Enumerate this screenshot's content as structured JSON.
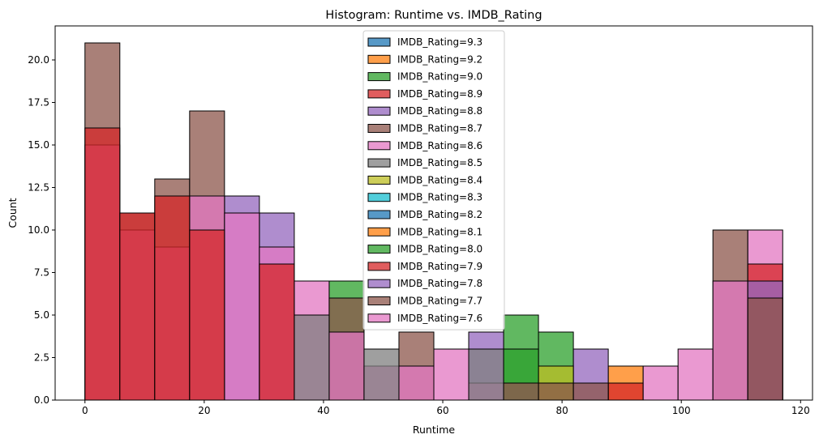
{
  "chart_data": {
    "type": "bar",
    "chart_subtype": "overlaid-histogram",
    "title": "Histogram: Runtime vs. IMDB_Rating",
    "xlabel": "Runtime",
    "ylabel": "Count",
    "xlim": [
      -5,
      122
    ],
    "ylim": [
      0,
      22
    ],
    "xticks": [
      0,
      20,
      40,
      60,
      80,
      100,
      120
    ],
    "yticks": [
      0,
      2.5,
      5,
      7.5,
      10,
      12.5,
      15,
      17.5,
      20
    ],
    "ytick_labels": [
      "0.0",
      "2.5",
      "5.0",
      "7.5",
      "10.0",
      "12.5",
      "15.0",
      "17.5",
      "20.0"
    ],
    "bin_edges": [
      0,
      5.85,
      11.7,
      17.55,
      23.4,
      29.25,
      35.1,
      40.95,
      46.8,
      52.65,
      58.5,
      64.35,
      70.2,
      76.05,
      81.9,
      87.75,
      93.6,
      99.45,
      105.3,
      111.15,
      117
    ],
    "grid": false,
    "legend_position": "top-center",
    "bar_opacity": 0.75,
    "series": [
      {
        "name": "IMDB_Rating=9.3",
        "color": "#1f77b4",
        "values": [
          0,
          0,
          0,
          0,
          0,
          0,
          0,
          0,
          0,
          0,
          0,
          0,
          0,
          0,
          0,
          0,
          0,
          0,
          0,
          0
        ]
      },
      {
        "name": "IMDB_Rating=9.2",
        "color": "#ff7f0e",
        "values": [
          0,
          0,
          0,
          0,
          0,
          0,
          0,
          0,
          0,
          0,
          0,
          0,
          0,
          0,
          0,
          2,
          0,
          0,
          0,
          0
        ]
      },
      {
        "name": "IMDB_Rating=9.0",
        "color": "#2ca02c",
        "values": [
          0,
          0,
          0,
          0,
          0,
          0,
          0,
          7,
          0,
          0,
          0,
          0,
          5,
          4,
          0,
          0,
          0,
          0,
          0,
          0
        ]
      },
      {
        "name": "IMDB_Rating=8.9",
        "color": "#d62728",
        "values": [
          0,
          0,
          0,
          0,
          0,
          0,
          0,
          0,
          0,
          0,
          0,
          0,
          0,
          0,
          0,
          1,
          0,
          0,
          0,
          0
        ]
      },
      {
        "name": "IMDB_Rating=8.8",
        "color": "#9467bd",
        "values": [
          0,
          0,
          0,
          0,
          12,
          11,
          0,
          0,
          0,
          0,
          0,
          4,
          0,
          0,
          3,
          0,
          0,
          0,
          0,
          0
        ]
      },
      {
        "name": "IMDB_Rating=8.7",
        "color": "#8c564b",
        "values": [
          21,
          11,
          13,
          17,
          0,
          0,
          0,
          6,
          0,
          4,
          0,
          0,
          0,
          0,
          0,
          0,
          0,
          0,
          10,
          0
        ]
      },
      {
        "name": "IMDB_Rating=8.6",
        "color": "#e377c2",
        "values": [
          15,
          10,
          9,
          12,
          11,
          9,
          7,
          4,
          2,
          2,
          3,
          1,
          1,
          0,
          0,
          0,
          2,
          3,
          7,
          10
        ]
      },
      {
        "name": "IMDB_Rating=8.5",
        "color": "#7f7f7f",
        "values": [
          0,
          0,
          0,
          0,
          0,
          0,
          5,
          0,
          3,
          0,
          0,
          3,
          0,
          0,
          0,
          0,
          0,
          0,
          0,
          0
        ]
      },
      {
        "name": "IMDB_Rating=8.4",
        "color": "#bcbd22",
        "values": [
          0,
          0,
          0,
          0,
          0,
          0,
          0,
          0,
          0,
          0,
          0,
          0,
          0,
          2,
          0,
          0,
          0,
          0,
          0,
          0
        ]
      },
      {
        "name": "IMDB_Rating=8.3",
        "color": "#17becf",
        "values": [
          0,
          0,
          0,
          0,
          0,
          0,
          0,
          0,
          0,
          0,
          0,
          0,
          0,
          0,
          0,
          0,
          0,
          0,
          0,
          0
        ]
      },
      {
        "name": "IMDB_Rating=8.2",
        "color": "#1f77b4",
        "values": [
          0,
          0,
          0,
          0,
          0,
          0,
          0,
          0,
          0,
          0,
          0,
          0,
          0,
          0,
          0,
          0,
          0,
          0,
          0,
          0
        ]
      },
      {
        "name": "IMDB_Rating=8.1",
        "color": "#ff7f0e",
        "values": [
          0,
          0,
          0,
          0,
          0,
          0,
          0,
          0,
          0,
          0,
          0,
          0,
          0,
          0,
          0,
          0,
          0,
          0,
          0,
          0
        ]
      },
      {
        "name": "IMDB_Rating=8.0",
        "color": "#2ca02c",
        "values": [
          0,
          0,
          0,
          0,
          0,
          0,
          0,
          0,
          0,
          0,
          0,
          0,
          3,
          0,
          0,
          0,
          0,
          0,
          0,
          0
        ]
      },
      {
        "name": "IMDB_Rating=7.9",
        "color": "#d62728",
        "values": [
          16,
          11,
          12,
          10,
          0,
          8,
          0,
          0,
          0,
          0,
          0,
          0,
          0,
          0,
          0,
          0,
          0,
          0,
          0,
          8
        ]
      },
      {
        "name": "IMDB_Rating=7.8",
        "color": "#9467bd",
        "values": [
          0,
          0,
          0,
          0,
          0,
          0,
          0,
          0,
          0,
          0,
          0,
          0,
          0,
          0,
          0,
          0,
          0,
          0,
          0,
          7
        ]
      },
      {
        "name": "IMDB_Rating=7.7",
        "color": "#8c564b",
        "values": [
          0,
          0,
          0,
          0,
          0,
          0,
          0,
          0,
          0,
          0,
          0,
          0,
          1,
          1,
          1,
          0,
          0,
          0,
          0,
          6
        ]
      },
      {
        "name": "IMDB_Rating=7.6",
        "color": "#e377c2",
        "values": [
          0,
          0,
          0,
          0,
          0,
          0,
          0,
          0,
          0,
          0,
          0,
          0,
          0,
          0,
          0,
          0,
          0,
          0,
          0,
          0
        ]
      }
    ]
  }
}
